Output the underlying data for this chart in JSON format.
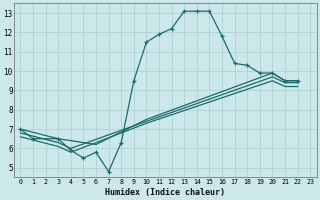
{
  "xlabel": "Humidex (Indice chaleur)",
  "bg_color": "#cce8ea",
  "grid_color": "#aacdd0",
  "line_color": "#1a6b6b",
  "xlim": [
    -0.5,
    23.5
  ],
  "ylim": [
    4.5,
    13.5
  ],
  "xticks": [
    0,
    1,
    2,
    3,
    4,
    5,
    6,
    7,
    8,
    9,
    10,
    11,
    12,
    13,
    14,
    15,
    16,
    17,
    18,
    19,
    20,
    21,
    22,
    23
  ],
  "yticks": [
    5,
    6,
    7,
    8,
    9,
    10,
    11,
    12,
    13
  ],
  "main_x": [
    0,
    1,
    3,
    4,
    5,
    6,
    7,
    8,
    9,
    10,
    11,
    12,
    13,
    14,
    15,
    16,
    17,
    18,
    19,
    20,
    21,
    22
  ],
  "main_y": [
    7.0,
    6.5,
    6.5,
    5.9,
    5.5,
    5.8,
    4.8,
    6.3,
    9.5,
    11.5,
    11.9,
    12.2,
    13.1,
    13.1,
    13.1,
    11.8,
    10.4,
    10.3,
    9.9,
    9.9,
    9.5,
    9.5
  ],
  "line2_x": [
    0,
    3,
    6,
    10,
    20,
    21,
    22
  ],
  "line2_y": [
    7.0,
    6.5,
    6.2,
    7.5,
    9.9,
    9.5,
    9.5
  ],
  "line3_x": [
    0,
    3,
    4,
    10,
    20,
    21,
    22
  ],
  "line3_y": [
    6.8,
    6.3,
    6.0,
    7.4,
    9.7,
    9.4,
    9.4
  ],
  "line4_x": [
    0,
    3,
    4,
    10,
    20,
    21,
    22
  ],
  "line4_y": [
    6.6,
    6.1,
    5.8,
    7.3,
    9.5,
    9.2,
    9.2
  ]
}
